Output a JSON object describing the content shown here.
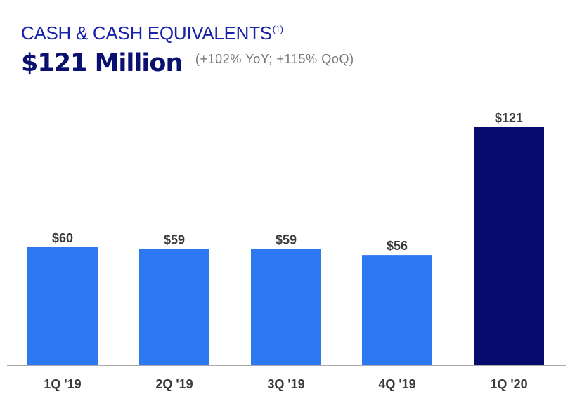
{
  "header": {
    "title": "CASH & CASH EQUIVALENTS",
    "title_note": "(1)",
    "headline": "$121 Million",
    "growth": "(+102% YoY; +115% QoQ)"
  },
  "colors": {
    "title": "#1a22a8",
    "headline": "#0a1070",
    "bar": "#2b78f0",
    "highlight_bar": "#040a6e",
    "axis": "#555555"
  },
  "chart_data": {
    "type": "bar",
    "title": "CASH & CASH EQUIVALENTS",
    "categories": [
      "1Q '19",
      "2Q '19",
      "3Q '19",
      "4Q '19",
      "1Q '20"
    ],
    "values": [
      60,
      59,
      59,
      56,
      121
    ],
    "value_labels": [
      "$60",
      "$59",
      "$59",
      "$56",
      "$121"
    ],
    "highlight_index": 4,
    "xlabel": "",
    "ylabel": "",
    "ylim": [
      0,
      130
    ],
    "grid": false,
    "legend": "none"
  }
}
